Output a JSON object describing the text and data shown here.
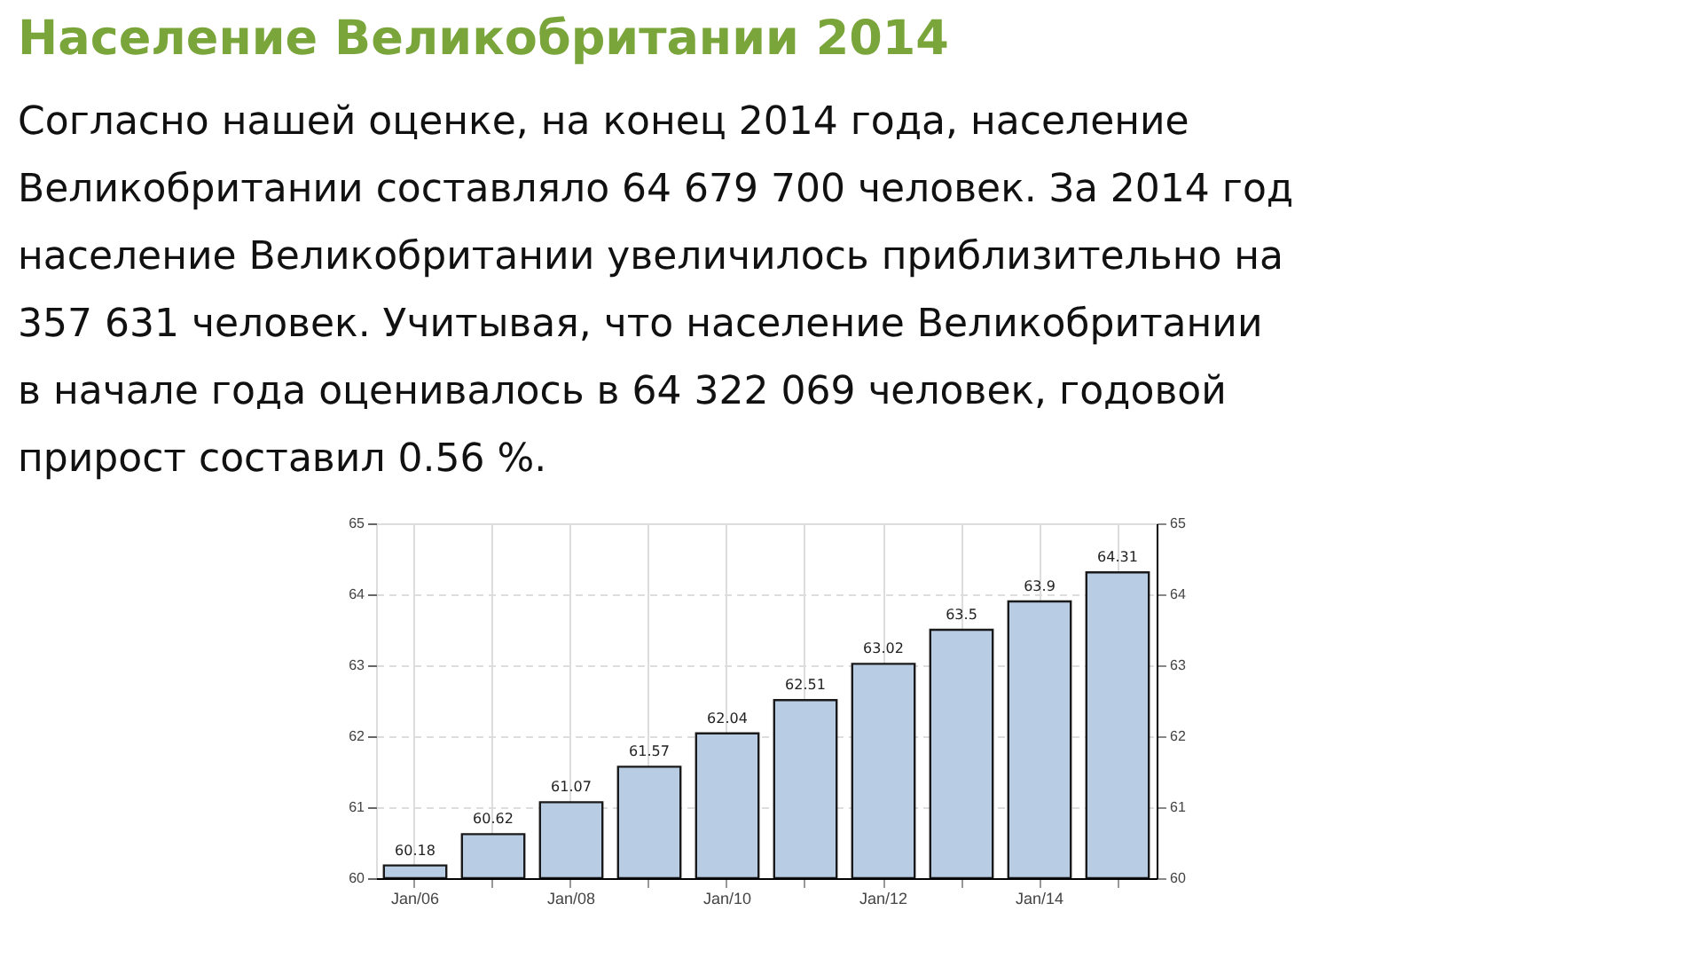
{
  "chart_data": {
    "type": "bar",
    "title": "Население Великобритании 2014",
    "subtitle": [
      "Согласно нашей оценке, на конец 2014 года, население",
      "Великобритании составляло 64 679 700 человек. За 2014 год",
      "население Великобритании увеличилось приблизительно на",
      "357 631 человек. Учитывая, что население Великобритании",
      "в начале года оценивалось в 64 322 069 человек, годовой",
      "прирост составил 0.56 %."
    ],
    "categories": [
      "Jan/06",
      null,
      "Jan/08",
      null,
      "Jan/10",
      null,
      "Jan/12",
      null,
      "Jan/14",
      null
    ],
    "values": [
      60.18,
      60.62,
      61.07,
      61.57,
      62.04,
      62.51,
      63.02,
      63.5,
      63.9,
      64.31
    ],
    "color": "#b8cce4",
    "data_labels": true,
    "ylim": [
      60,
      65
    ],
    "yticks": [
      60,
      61,
      62,
      63,
      64,
      65
    ],
    "y2lim": [
      60,
      65
    ],
    "y2ticks": [
      60,
      61,
      62,
      63,
      64,
      65
    ],
    "grid": true
  }
}
